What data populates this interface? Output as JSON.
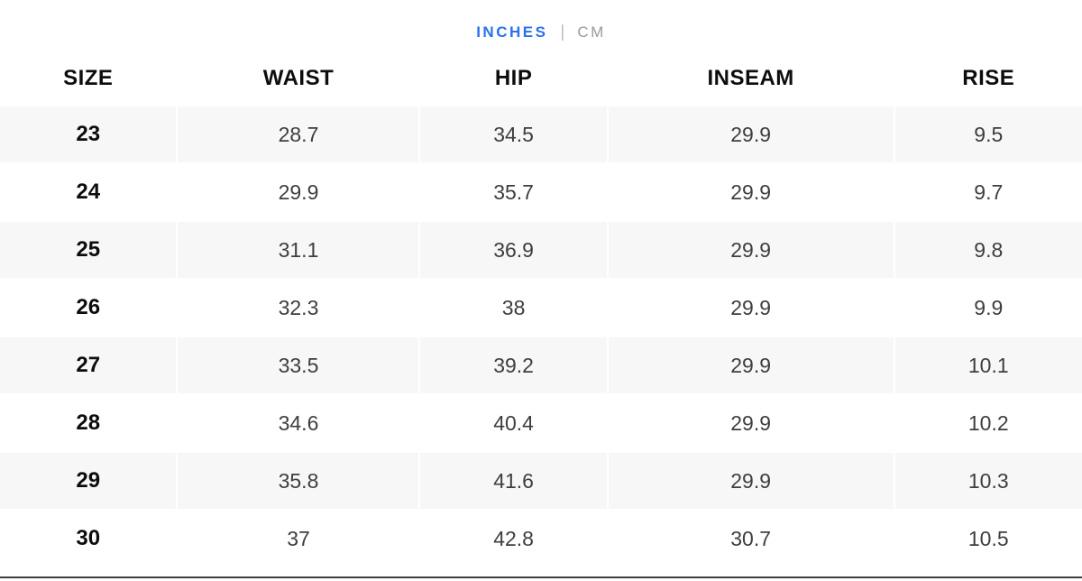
{
  "unit_toggle": {
    "inches_label": "INCHES",
    "separator": "|",
    "cm_label": "CM",
    "active_unit": "INCHES"
  },
  "size_chart": {
    "columns": [
      "SIZE",
      "WAIST",
      "HIP",
      "INSEAM",
      "RISE"
    ],
    "rows": [
      [
        "23",
        "28.7",
        "34.5",
        "29.9",
        "9.5"
      ],
      [
        "24",
        "29.9",
        "35.7",
        "29.9",
        "9.7"
      ],
      [
        "25",
        "31.1",
        "36.9",
        "29.9",
        "9.8"
      ],
      [
        "26",
        "32.3",
        "38",
        "29.9",
        "9.9"
      ],
      [
        "27",
        "33.5",
        "39.2",
        "29.9",
        "10.1"
      ],
      [
        "28",
        "34.6",
        "40.4",
        "29.9",
        "10.2"
      ],
      [
        "29",
        "35.8",
        "41.6",
        "29.9",
        "10.3"
      ],
      [
        "30",
        "37",
        "42.8",
        "30.7",
        "10.5"
      ]
    ]
  },
  "colors": {
    "accent_blue": "#2a72ea",
    "inactive_gray": "#9a9a9a",
    "row_stripe": "#f7f7f8",
    "data_text": "#3e3e3e",
    "header_text": "#0d0d0d"
  }
}
